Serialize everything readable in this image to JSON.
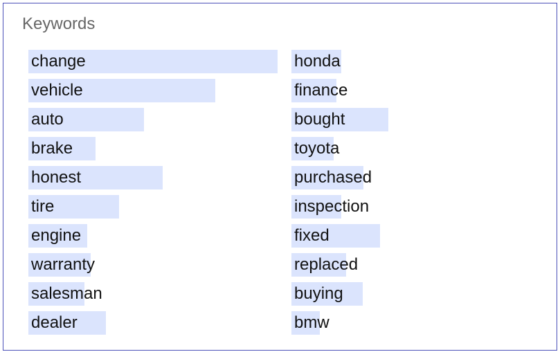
{
  "panel": {
    "title": "Keywords"
  },
  "chart_data": {
    "type": "bar",
    "title": "Keywords",
    "orientation": "horizontal",
    "bar_color": "#dbe4fd",
    "value_note": "relative keyword weight, 0-1 scale (max = 1.0)",
    "columns": [
      {
        "categories": [
          "change",
          "vehicle",
          "auto",
          "brake",
          "honest",
          "tire",
          "engine",
          "warranty",
          "salesman",
          "dealer"
        ],
        "values": [
          1.0,
          0.75,
          0.465,
          0.27,
          0.54,
          0.365,
          0.235,
          0.25,
          0.225,
          0.31
        ]
      },
      {
        "categories": [
          "honda",
          "finance",
          "bought",
          "toyota",
          "purchased",
          "inspection",
          "fixed",
          "replaced",
          "buying",
          "bmw"
        ],
        "values": [
          0.2,
          0.18,
          0.39,
          0.17,
          0.29,
          0.2,
          0.355,
          0.22,
          0.285,
          0.115
        ]
      }
    ]
  }
}
